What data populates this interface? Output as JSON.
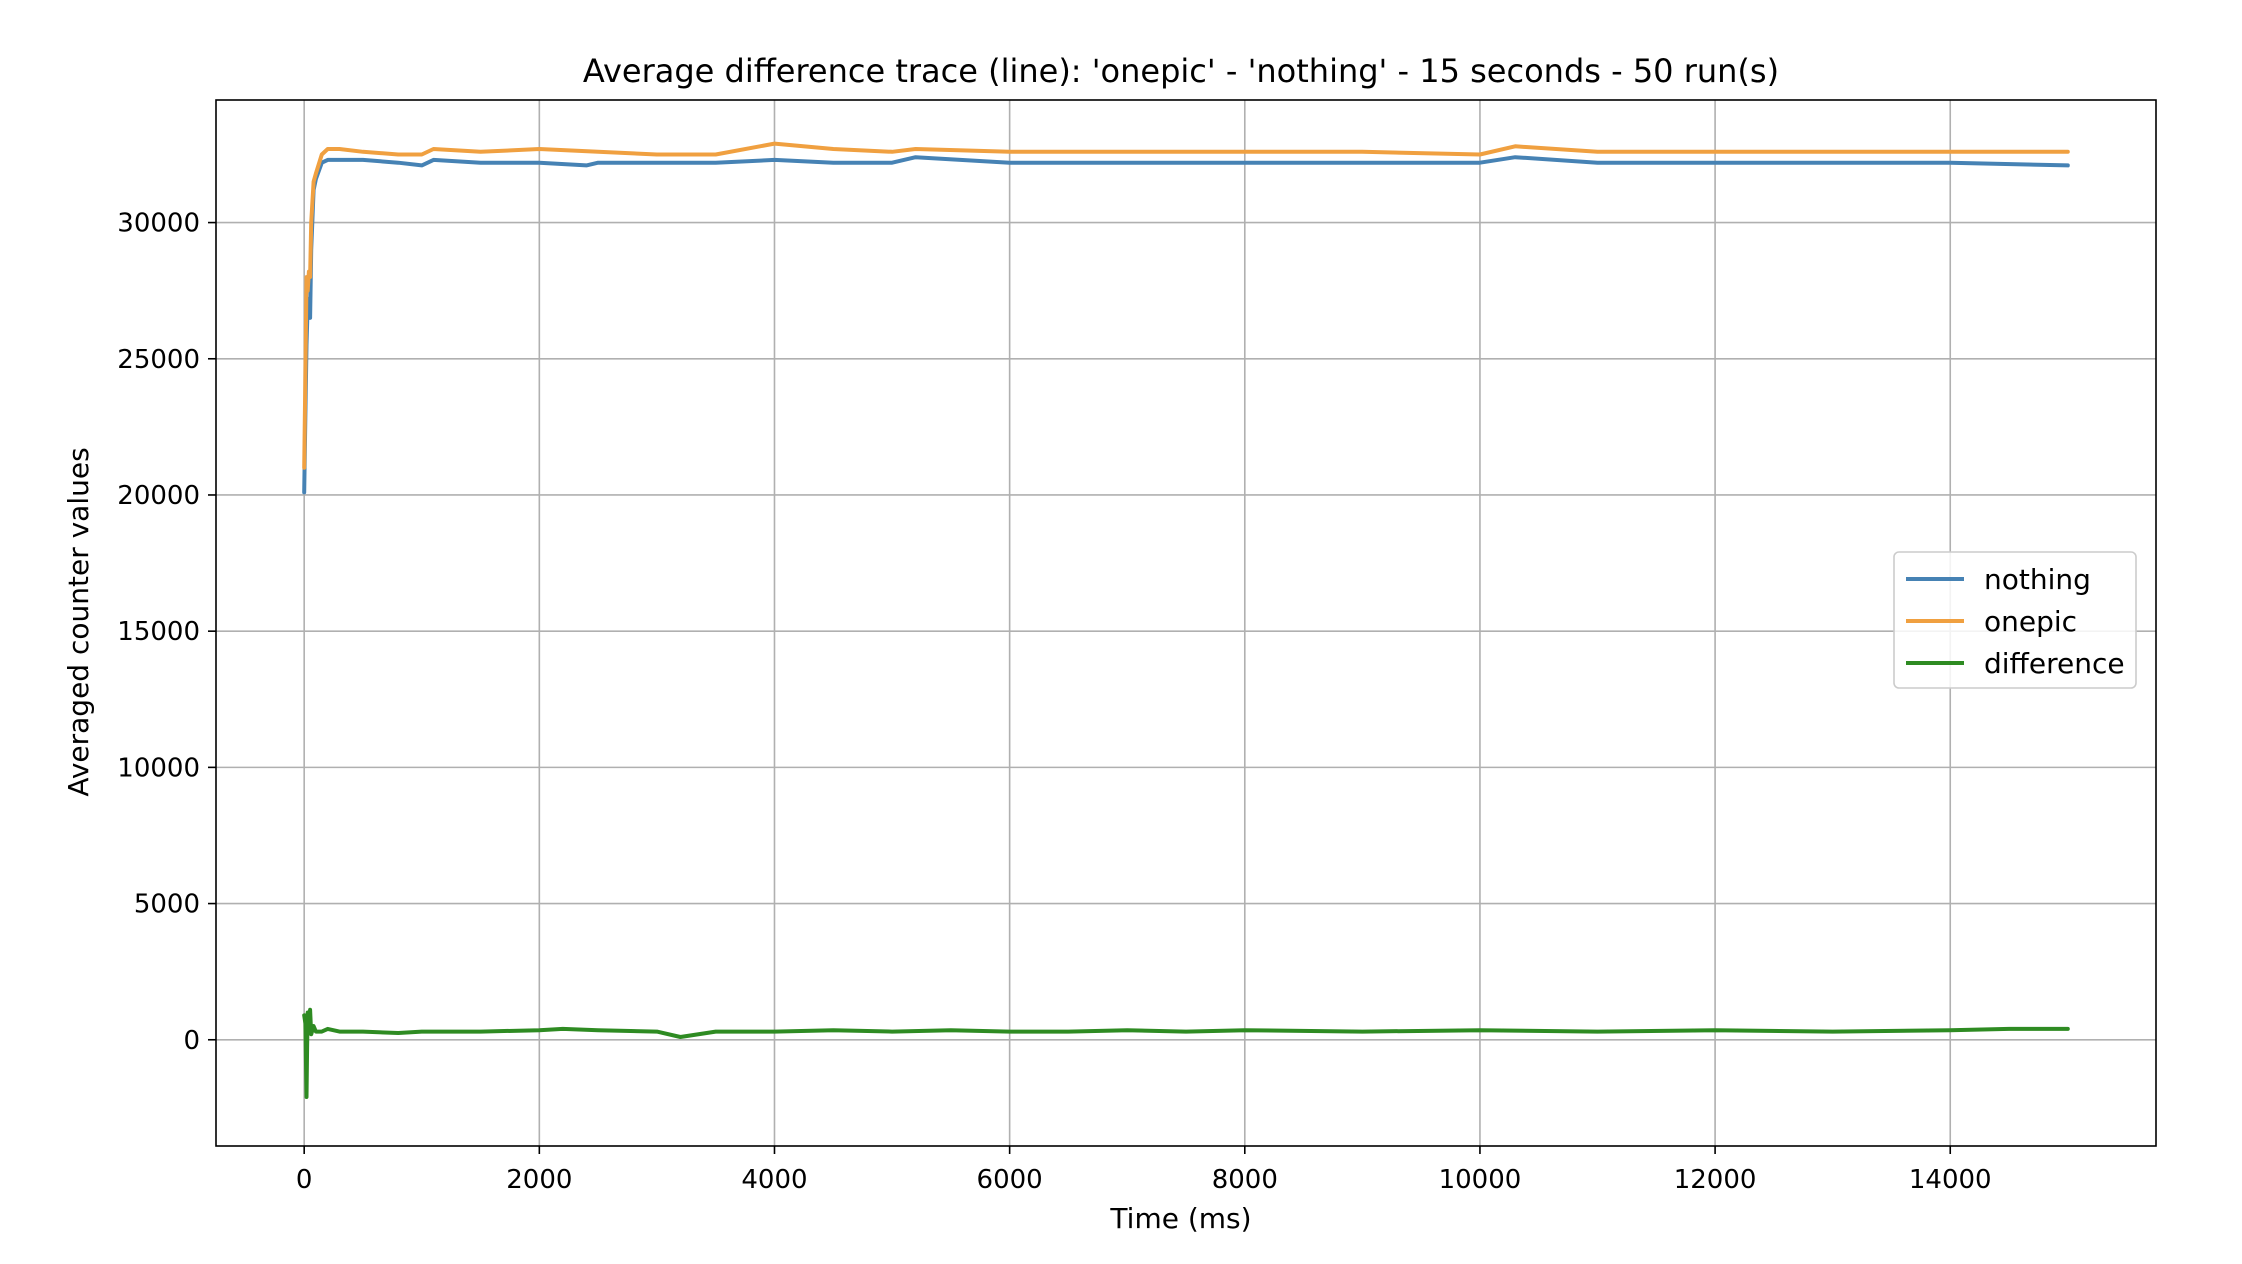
{
  "chart_data": {
    "type": "line",
    "title": "Average difference trace (line): 'onepic' - 'nothing' - 15 seconds - 50 run(s)",
    "xlabel": "Time (ms)",
    "ylabel": "Averaged counter values",
    "xlim": [
      -750,
      15750
    ],
    "ylim": [
      -3900,
      34500
    ],
    "xticks": [
      0,
      2000,
      4000,
      6000,
      8000,
      10000,
      12000,
      14000
    ],
    "yticks": [
      0,
      5000,
      10000,
      15000,
      20000,
      25000,
      30000
    ],
    "grid": true,
    "legend_position": "center-right",
    "series": [
      {
        "name": "nothing",
        "color": "#4682b4",
        "x": [
          0,
          10,
          20,
          30,
          40,
          50,
          60,
          80,
          100,
          150,
          200,
          300,
          500,
          800,
          1000,
          1100,
          1500,
          2000,
          2400,
          2500,
          3000,
          3500,
          4000,
          4500,
          5000,
          5200,
          6000,
          7000,
          8000,
          9000,
          10000,
          10300,
          11000,
          12000,
          13000,
          14000,
          15000
        ],
        "y": [
          20100,
          23000,
          25500,
          27000,
          27200,
          26500,
          29000,
          31200,
          31600,
          32200,
          32300,
          32300,
          32300,
          32200,
          32100,
          32300,
          32200,
          32200,
          32100,
          32200,
          32200,
          32200,
          32300,
          32200,
          32200,
          32400,
          32200,
          32200,
          32200,
          32200,
          32200,
          32400,
          32200,
          32200,
          32200,
          32200,
          32100
        ]
      },
      {
        "name": "onepic",
        "color": "#f0a040",
        "x": [
          0,
          10,
          20,
          30,
          40,
          50,
          60,
          80,
          100,
          150,
          200,
          300,
          500,
          800,
          1000,
          1100,
          1500,
          2000,
          2500,
          3000,
          3500,
          4000,
          4500,
          5000,
          5200,
          6000,
          7000,
          8000,
          9000,
          10000,
          10300,
          11000,
          12000,
          13000,
          14000,
          15000
        ],
        "y": [
          21000,
          24500,
          28000,
          27500,
          28200,
          28000,
          30000,
          31500,
          31800,
          32500,
          32700,
          32700,
          32600,
          32500,
          32500,
          32700,
          32600,
          32700,
          32600,
          32500,
          32500,
          32900,
          32700,
          32600,
          32700,
          32600,
          32600,
          32600,
          32600,
          32500,
          32800,
          32600,
          32600,
          32600,
          32600,
          32600
        ]
      },
      {
        "name": "difference",
        "color": "#2e8b22",
        "x": [
          0,
          10,
          20,
          25,
          30,
          40,
          50,
          60,
          80,
          100,
          150,
          200,
          300,
          500,
          800,
          1000,
          1500,
          2000,
          2200,
          2500,
          3000,
          3200,
          3500,
          4000,
          4500,
          5000,
          5500,
          6000,
          6500,
          7000,
          7500,
          8000,
          9000,
          10000,
          11000,
          12000,
          13000,
          14000,
          14500,
          15000
        ],
        "y": [
          900,
          600,
          -2100,
          -300,
          1000,
          700,
          1100,
          200,
          500,
          300,
          300,
          400,
          300,
          300,
          250,
          300,
          300,
          350,
          400,
          350,
          300,
          100,
          300,
          300,
          350,
          300,
          350,
          300,
          300,
          350,
          300,
          350,
          300,
          350,
          300,
          350,
          300,
          350,
          400,
          400
        ]
      }
    ]
  }
}
